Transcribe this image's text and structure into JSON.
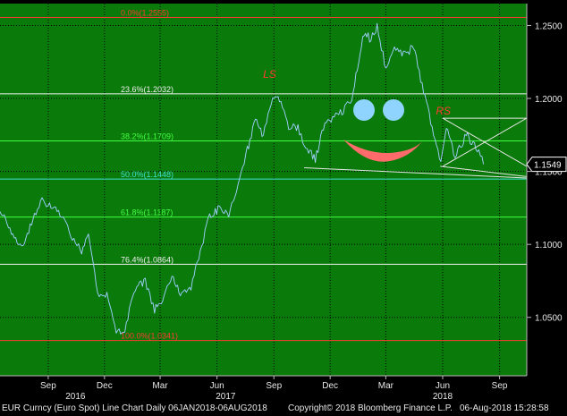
{
  "chart_data": {
    "type": "line",
    "instrument": "EUR Curncy (Euro Spot)",
    "x_ticks": [
      {
        "label": "Sep",
        "date": "2016-09-01"
      },
      {
        "label": "Dec",
        "date": "2016-12-01"
      },
      {
        "label": "Mar",
        "date": "2017-03-01"
      },
      {
        "label": "Jun",
        "date": "2017-06-01"
      },
      {
        "label": "Sep",
        "date": "2017-09-01"
      },
      {
        "label": "Dec",
        "date": "2017-12-01"
      },
      {
        "label": "Mar",
        "date": "2018-03-01"
      },
      {
        "label": "Jun",
        "date": "2018-06-01"
      },
      {
        "label": "Sep",
        "date": "2018-09-01"
      }
    ],
    "year_labels": [
      {
        "label": "2016",
        "date": "2016-10-15"
      },
      {
        "label": "2017",
        "date": "2017-06-15"
      },
      {
        "label": "2018",
        "date": "2018-06-01"
      }
    ],
    "x_range": [
      "2016-06-15",
      "2018-10-15"
    ],
    "ylim": [
      1.01,
      1.265
    ],
    "y_ticks": [
      "1.2500",
      "1.2000",
      "1.1500",
      "1.1000",
      "1.0500"
    ],
    "last_value": "1.1549",
    "series": [
      {
        "points": [
          [
            "2016-06-15",
            1.125
          ],
          [
            "2016-07-01",
            1.11
          ],
          [
            "2016-07-20",
            1.098
          ],
          [
            "2016-08-05",
            1.115
          ],
          [
            "2016-08-22",
            1.13
          ],
          [
            "2016-09-08",
            1.125
          ],
          [
            "2016-09-25",
            1.12
          ],
          [
            "2016-10-10",
            1.105
          ],
          [
            "2016-10-25",
            1.095
          ],
          [
            "2016-11-05",
            1.108
          ],
          [
            "2016-11-20",
            1.065
          ],
          [
            "2016-12-05",
            1.065
          ],
          [
            "2016-12-20",
            1.04
          ],
          [
            "2017-01-03",
            1.042
          ],
          [
            "2017-01-20",
            1.07
          ],
          [
            "2017-02-05",
            1.075
          ],
          [
            "2017-02-20",
            1.055
          ],
          [
            "2017-03-05",
            1.06
          ],
          [
            "2017-03-20",
            1.08
          ],
          [
            "2017-04-05",
            1.065
          ],
          [
            "2017-04-20",
            1.07
          ],
          [
            "2017-05-05",
            1.095
          ],
          [
            "2017-05-20",
            1.12
          ],
          [
            "2017-06-05",
            1.125
          ],
          [
            "2017-06-20",
            1.12
          ],
          [
            "2017-07-05",
            1.14
          ],
          [
            "2017-07-20",
            1.165
          ],
          [
            "2017-08-02",
            1.185
          ],
          [
            "2017-08-15",
            1.175
          ],
          [
            "2017-08-30",
            1.2
          ],
          [
            "2017-09-10",
            1.2
          ],
          [
            "2017-09-25",
            1.18
          ],
          [
            "2017-10-10",
            1.18
          ],
          [
            "2017-10-25",
            1.165
          ],
          [
            "2017-11-07",
            1.158
          ],
          [
            "2017-11-20",
            1.18
          ],
          [
            "2017-12-05",
            1.188
          ],
          [
            "2017-12-20",
            1.19
          ],
          [
            "2018-01-05",
            1.2
          ],
          [
            "2018-01-25",
            1.245
          ],
          [
            "2018-02-05",
            1.24
          ],
          [
            "2018-02-15",
            1.25
          ],
          [
            "2018-03-01",
            1.22
          ],
          [
            "2018-03-15",
            1.235
          ],
          [
            "2018-04-01",
            1.23
          ],
          [
            "2018-04-15",
            1.236
          ],
          [
            "2018-05-01",
            1.205
          ],
          [
            "2018-05-15",
            1.18
          ],
          [
            "2018-05-29",
            1.155
          ],
          [
            "2018-06-07",
            1.18
          ],
          [
            "2018-06-21",
            1.16
          ],
          [
            "2018-07-09",
            1.175
          ],
          [
            "2018-07-27",
            1.165
          ],
          [
            "2018-08-06",
            1.1549
          ]
        ]
      }
    ],
    "fibonacci_levels": [
      {
        "label": "0.0%(1.2555)",
        "value": 1.2555
      },
      {
        "label": "23.6%(1.2032)",
        "value": 1.2032
      },
      {
        "label": "38.2%(1.1709)",
        "value": 1.1709
      },
      {
        "label": "50.0%(1.1448)",
        "value": 1.1448
      },
      {
        "label": "61.8%(1.1187)",
        "value": 1.1187
      },
      {
        "label": "76.4%(1.0864)",
        "value": 1.0864
      },
      {
        "label": "100.0%(1.0341)",
        "value": 1.0341
      }
    ],
    "annotations": [
      {
        "text": "LS",
        "date": "2017-08-25",
        "value": 1.214
      },
      {
        "text": "RS",
        "date": "2018-06-02",
        "value": 1.189
      }
    ],
    "trend_lines": [
      {
        "from": [
          "2017-10-20",
          1.1525
        ],
        "to": [
          "2018-10-15",
          1.1455
        ]
      },
      {
        "from": [
          "2018-05-28",
          1.1535
        ],
        "to": [
          "2018-10-15",
          1.1465
        ]
      },
      {
        "from": [
          "2018-06-01",
          1.1865
        ],
        "to": [
          "2018-10-15",
          1.1865
        ]
      },
      {
        "from": [
          "2018-06-01",
          1.1535
        ],
        "to": [
          "2018-10-15",
          1.1865
        ]
      },
      {
        "from": [
          "2018-06-01",
          1.1865
        ],
        "to": [
          "2018-10-15",
          1.1535
        ]
      }
    ],
    "colors": {
      "background": "#0a7a0a",
      "grid": "#000000",
      "price_line": "#6fb4e8",
      "fib_red": "#ff3b30",
      "fib_white": "#f2f2f2",
      "fib_green": "#44ff44",
      "fib_cyan": "#40e0d0",
      "annotation": "#ff3b30",
      "face_eyes": "#8fd3ff",
      "face_mouth": "#ff6b6b"
    }
  },
  "footer": {
    "left": "EUR Curncy (Euro Spot) Line Chart  Daily 06JAN2018-06AUG2018",
    "center": "Copyright© 2018 Bloomberg Finance L.P.",
    "right": "06-Aug-2018 15:28:58"
  }
}
